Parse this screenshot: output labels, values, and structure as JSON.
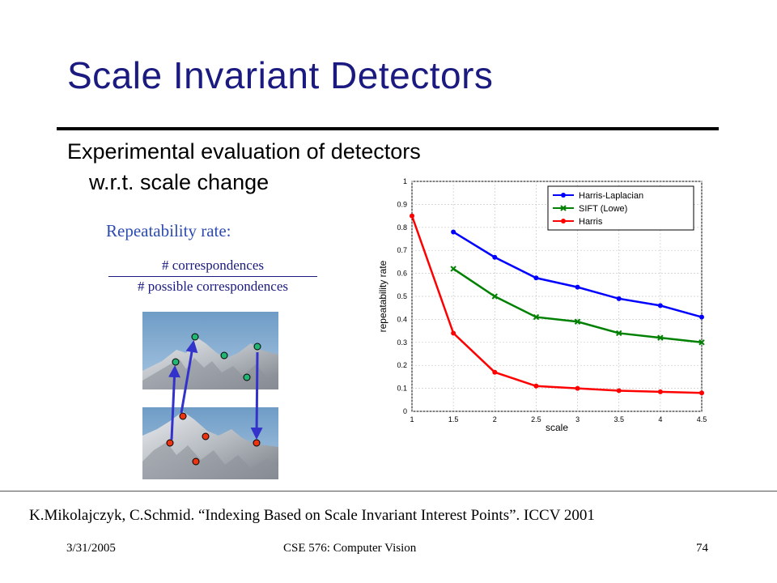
{
  "slide": {
    "title": "Scale Invariant Detectors",
    "bullet_line1": "Experimental evaluation of detectors",
    "bullet_line2": "w.r.t. scale change",
    "repeatability_label": "Repeatability rate:",
    "fraction_numerator": "# correspondences",
    "fraction_denominator": "# possible correspondences",
    "citation": "K.Mikolajczyk, C.Schmid. “Indexing Based on Scale Invariant Interest Points”. ICCV 2001",
    "footer_date": "3/31/2005",
    "footer_course": "CSE 576: Computer Vision",
    "footer_page": "74"
  },
  "colors": {
    "title": "#1a1a80",
    "harris_laplacian": "#0000ff",
    "sift": "#008000",
    "harris": "#ff0000",
    "top_points": "#22b573",
    "bottom_points": "#ee3311",
    "arrows": "#3333cc"
  },
  "chart_data": {
    "type": "line",
    "xlabel": "scale",
    "ylabel": "repeatability rate",
    "xlim": [
      1,
      4.5
    ],
    "ylim": [
      0,
      1
    ],
    "x_ticks": [
      "1",
      "1.5",
      "2",
      "2.5",
      "3",
      "3.5",
      "4",
      "4.5"
    ],
    "y_ticks": [
      "0",
      "0.1",
      "0.2",
      "0.3",
      "0.4",
      "0.5",
      "0.6",
      "0.7",
      "0.8",
      "0.9",
      "1"
    ],
    "grid": true,
    "legend_position": "top-right",
    "series": [
      {
        "name": "Harris-Laplacian",
        "marker": "dot",
        "x": [
          1.5,
          2,
          2.5,
          3,
          3.5,
          4,
          4.5
        ],
        "y": [
          0.78,
          0.67,
          0.58,
          0.54,
          0.49,
          0.46,
          0.41
        ]
      },
      {
        "name": "SIFT (Lowe)",
        "marker": "x",
        "x": [
          1.5,
          2,
          2.5,
          3,
          3.5,
          4,
          4.5
        ],
        "y": [
          0.62,
          0.5,
          0.41,
          0.39,
          0.34,
          0.32,
          0.3
        ]
      },
      {
        "name": "Harris",
        "marker": "dot",
        "x": [
          1,
          1.5,
          2,
          2.5,
          3,
          3.5,
          4,
          4.5
        ],
        "y": [
          0.85,
          0.34,
          0.17,
          0.11,
          0.1,
          0.09,
          0.085,
          0.08
        ]
      }
    ]
  }
}
